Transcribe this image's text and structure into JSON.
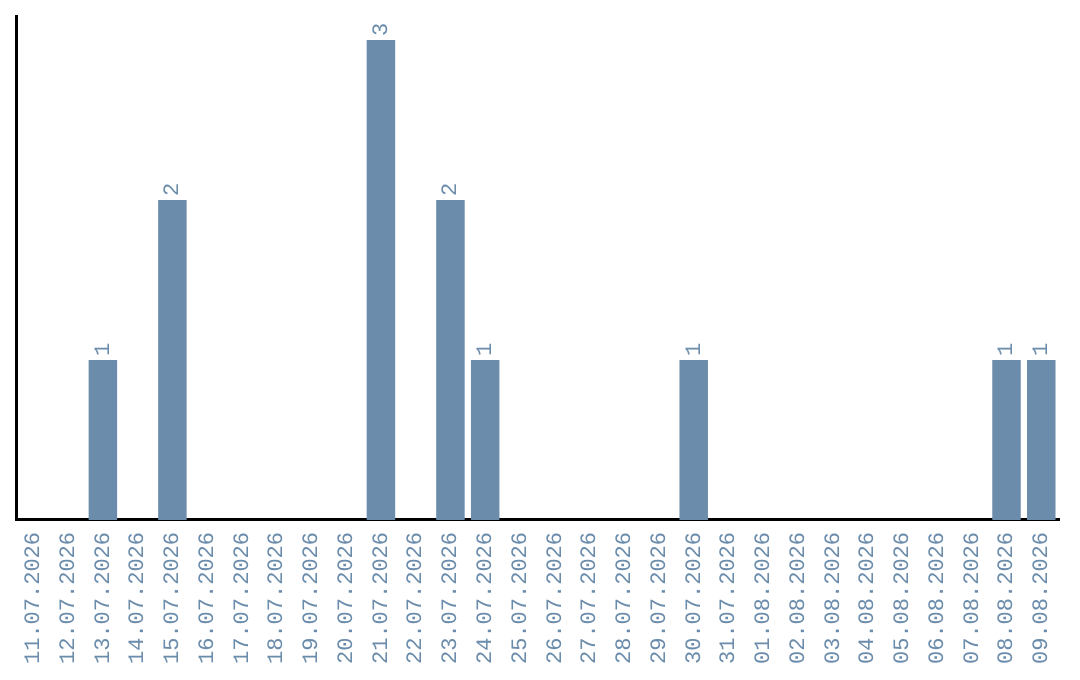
{
  "chart_data": {
    "type": "bar",
    "categories": [
      "11.07.2026",
      "12.07.2026",
      "13.07.2026",
      "14.07.2026",
      "15.07.2026",
      "16.07.2026",
      "17.07.2026",
      "18.07.2026",
      "19.07.2026",
      "20.07.2026",
      "21.07.2026",
      "22.07.2026",
      "23.07.2026",
      "24.07.2026",
      "25.07.2026",
      "26.07.2026",
      "27.07.2026",
      "28.07.2026",
      "29.07.2026",
      "30.07.2026",
      "31.07.2026",
      "01.08.2026",
      "02.08.2026",
      "03.08.2026",
      "04.08.2026",
      "05.08.2026",
      "06.08.2026",
      "07.08.2026",
      "08.08.2026",
      "09.08.2026"
    ],
    "values": [
      0,
      0,
      1,
      0,
      2,
      0,
      0,
      0,
      0,
      0,
      3,
      0,
      2,
      1,
      0,
      0,
      0,
      0,
      0,
      1,
      0,
      0,
      0,
      0,
      0,
      0,
      0,
      0,
      1,
      1
    ],
    "value_labels": [
      null,
      null,
      "1",
      null,
      "2",
      null,
      null,
      null,
      null,
      null,
      "3",
      null,
      "2",
      "1",
      null,
      null,
      null,
      null,
      null,
      "1",
      null,
      null,
      null,
      null,
      null,
      null,
      null,
      null,
      "1",
      "1"
    ],
    "color": "#6b8cab",
    "ylim": [
      0,
      3.15
    ],
    "tick_labels": "x",
    "grid": false,
    "legend": false
  }
}
